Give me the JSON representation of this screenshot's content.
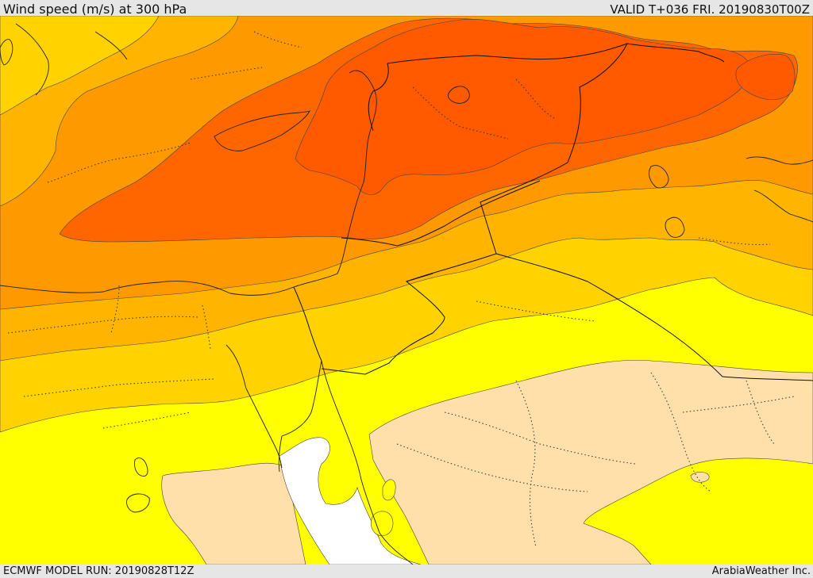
{
  "header": {
    "title": "Wind speed (m/s) at 300 hPa",
    "valid": "VALID T+036 FRI. 20190830T00Z"
  },
  "footer": {
    "model_run": "ECMWF MODEL RUN: 20190828T12Z",
    "credit": "ArabiaWeather Inc."
  },
  "map": {
    "variable": "wind speed",
    "units": "m/s",
    "level_hpa": 300,
    "shading_colors": [
      "#ffffff",
      "#ffdfaa",
      "#ffff00",
      "#ffd200",
      "#ffb400",
      "#ff9900",
      "#ff6600"
    ]
  }
}
